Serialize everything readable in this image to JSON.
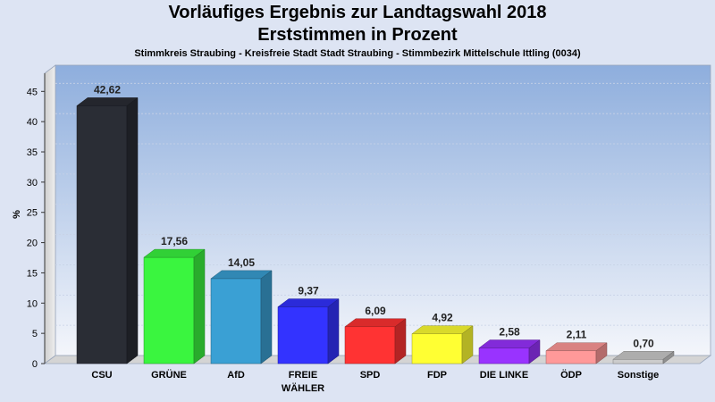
{
  "chart_data": {
    "type": "bar",
    "title": "Vorläufiges Ergebnis zur Landtagswahl 2018",
    "subtitle_line": "Erststimmen in Prozent",
    "subtitle": "Stimmkreis Straubing - Kreisfreie Stadt Stadt Straubing - Stimmbezirk Mittelschule Ittling (0034)",
    "ylabel": "%",
    "xlabel": "",
    "ylim": [
      0,
      48
    ],
    "yticks": [
      "0",
      "5",
      "10",
      "15",
      "20",
      "25",
      "30",
      "35",
      "40",
      "45"
    ],
    "categories": [
      "CSU",
      "GRÜNE",
      "AfD",
      "FREIE WÄHLER",
      "SPD",
      "FDP",
      "DIE LINKE",
      "ÖDP",
      "Sonstige"
    ],
    "category_lines": [
      [
        "CSU"
      ],
      [
        "GRÜNE"
      ],
      [
        "AfD"
      ],
      [
        "FREIE",
        "WÄHLER"
      ],
      [
        "SPD"
      ],
      [
        "FDP"
      ],
      [
        "DIE LINKE"
      ],
      [
        "ÖDP"
      ],
      [
        "Sonstige"
      ]
    ],
    "values": [
      42.62,
      17.56,
      14.05,
      9.37,
      6.09,
      4.92,
      2.58,
      2.11,
      0.7
    ],
    "value_labels": [
      "42,62",
      "17,56",
      "14,05",
      "9,37",
      "6,09",
      "4,92",
      "2,58",
      "2,11",
      "0,70"
    ],
    "colors": [
      "#2a2d35",
      "#3af53f",
      "#3aa0d4",
      "#3333ff",
      "#ff3333",
      "#ffff33",
      "#9933ff",
      "#ff9999",
      "#cccccc"
    ],
    "grid": true,
    "legend": "none"
  }
}
